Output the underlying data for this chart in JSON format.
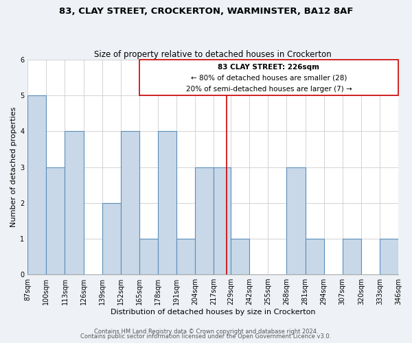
{
  "title1": "83, CLAY STREET, CROCKERTON, WARMINSTER, BA12 8AF",
  "title2": "Size of property relative to detached houses in Crockerton",
  "xlabel": "Distribution of detached houses by size in Crockerton",
  "ylabel": "Number of detached properties",
  "footer1": "Contains HM Land Registry data © Crown copyright and database right 2024.",
  "footer2": "Contains public sector information licensed under the Open Government Licence v3.0.",
  "bar_edges": [
    87,
    100,
    113,
    126,
    139,
    152,
    165,
    178,
    191,
    204,
    217,
    229,
    242,
    255,
    268,
    281,
    294,
    307,
    320,
    333,
    346
  ],
  "bar_heights": [
    5,
    3,
    4,
    0,
    2,
    4,
    1,
    4,
    1,
    3,
    3,
    1,
    0,
    0,
    3,
    1,
    0,
    1,
    0,
    1
  ],
  "bar_color": "#c8d8e8",
  "bar_edge_color": "#5b8db8",
  "reference_line_x": 226,
  "reference_line_color": "#cc0000",
  "ylim": [
    0,
    6
  ],
  "yticks": [
    0,
    1,
    2,
    3,
    4,
    5,
    6
  ],
  "annotation_title": "83 CLAY STREET: 226sqm",
  "annotation_line1": "← 80% of detached houses are smaller (28)",
  "annotation_line2": "20% of semi-detached houses are larger (7) →",
  "annotation_box_color": "#cc0000",
  "tick_labels": [
    "87sqm",
    "100sqm",
    "113sqm",
    "126sqm",
    "139sqm",
    "152sqm",
    "165sqm",
    "178sqm",
    "191sqm",
    "204sqm",
    "217sqm",
    "229sqm",
    "242sqm",
    "255sqm",
    "268sqm",
    "281sqm",
    "294sqm",
    "307sqm",
    "320sqm",
    "333sqm",
    "346sqm"
  ],
  "background_color": "#eef2f7",
  "plot_background_color": "#ffffff",
  "grid_color": "#cccccc",
  "title_fontsize": 9.5,
  "subtitle_fontsize": 8.5,
  "axis_label_fontsize": 8,
  "tick_fontsize": 7,
  "annotation_fontsize": 7.5,
  "ylabel_fontsize": 8,
  "footer_fontsize": 6
}
